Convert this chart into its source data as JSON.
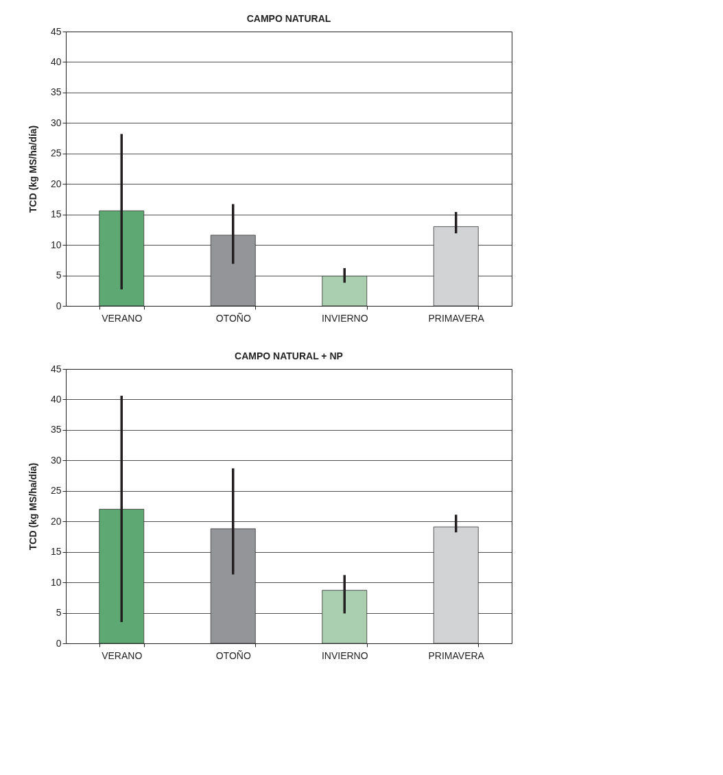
{
  "chart_data": [
    {
      "type": "bar",
      "title": "CAMPO NATURAL",
      "ylabel": "TCD (kg MS/ha/día)",
      "categories": [
        "VERANO",
        "OTOÑO",
        "INVIERNO",
        "PRIMAVERA"
      ],
      "values": [
        15.6,
        11.6,
        4.9,
        13.0
      ],
      "colors": [
        "#5ea874",
        "#939598",
        "#a9cfb0",
        "#d1d3d4"
      ],
      "errors": [
        [
          2.7,
          28.2
        ],
        [
          6.9,
          16.7
        ],
        [
          3.8,
          6.2
        ],
        [
          11.9,
          15.4
        ]
      ],
      "ylim": [
        0,
        45
      ],
      "yticks": [
        0,
        5,
        10,
        15,
        20,
        25,
        30,
        35,
        40,
        45
      ],
      "grid": "y"
    },
    {
      "type": "bar",
      "title": "CAMPO NATURAL + NP",
      "ylabel": "TCD (kg MS/ha/día)",
      "categories": [
        "VERANO",
        "OTOÑO",
        "INVIERNO",
        "PRIMAVERA"
      ],
      "values": [
        22.0,
        18.8,
        8.7,
        19.1
      ],
      "colors": [
        "#5ea874",
        "#939598",
        "#a9cfb0",
        "#d1d3d4"
      ],
      "errors": [
        [
          3.5,
          40.6
        ],
        [
          11.3,
          28.7
        ],
        [
          4.9,
          11.2
        ],
        [
          18.2,
          21.1
        ]
      ],
      "ylim": [
        0,
        45
      ],
      "yticks": [
        0,
        5,
        10,
        15,
        20,
        25,
        30,
        35,
        40,
        45
      ],
      "grid": "y"
    }
  ]
}
